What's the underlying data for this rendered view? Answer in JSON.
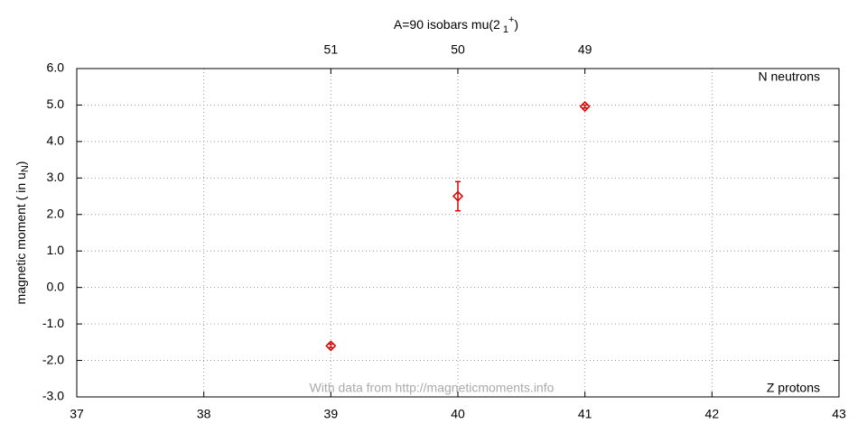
{
  "chart_data": {
    "type": "scatter",
    "title": {
      "text": "A=90 isobars mu(2",
      "sub": "1",
      "sup": "+",
      "end": ")"
    },
    "ylabel": {
      "text": "magnetic moment ( in u",
      "sub": "N",
      "end": ")"
    },
    "annotations": {
      "top_right": "N neutrons",
      "bottom_right": "Z protons",
      "credit": "With data from http://magneticmoments.info"
    },
    "x": [
      39,
      40,
      41
    ],
    "series": [
      {
        "color": "#dd0000",
        "values": [
          -1.6,
          2.5,
          4.96
        ],
        "errors": [
          0.05,
          0.4,
          0.04
        ]
      }
    ],
    "xlim": [
      37,
      43
    ],
    "xticks": [
      37,
      38,
      39,
      40,
      41,
      42,
      43
    ],
    "x2ticks": [
      {
        "value": 39,
        "label": "51"
      },
      {
        "value": 40,
        "label": "50"
      },
      {
        "value": 41,
        "label": "49"
      }
    ],
    "ylim": [
      -3,
      6
    ],
    "yticks": [
      {
        "value": -3,
        "label": "-3.0"
      },
      {
        "value": -2,
        "label": "-2.0"
      },
      {
        "value": -1,
        "label": "-1.0"
      },
      {
        "value": 0,
        "label": "0.0"
      },
      {
        "value": 1,
        "label": "1.0"
      },
      {
        "value": 2,
        "label": "2.0"
      },
      {
        "value": 3,
        "label": "3.0"
      },
      {
        "value": 4,
        "label": "4.0"
      },
      {
        "value": 5,
        "label": "5.0"
      },
      {
        "value": 6,
        "label": "6.0"
      }
    ],
    "grid": true
  }
}
